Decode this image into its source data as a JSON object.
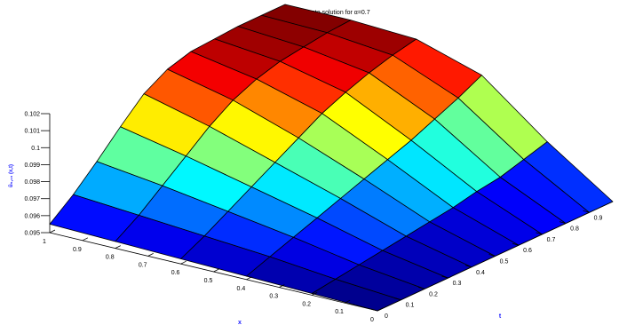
{
  "chart_data": {
    "type": "surface",
    "title": "Approximate solution for α=0.7",
    "xlabel": "x",
    "tlabel": "t",
    "zlabel": "ũ₅,₁₀ (x,t)",
    "x_ticks": [
      "0",
      "0.1",
      "0.2",
      "0.3",
      "0.4",
      "0.5",
      "0.6",
      "0.7",
      "0.8",
      "0.9",
      "1"
    ],
    "t_ticks": [
      "0",
      "0.1",
      "0.2",
      "0.3",
      "0.4",
      "0.5",
      "0.6",
      "0.7",
      "0.8",
      "0.9"
    ],
    "z_ticks": [
      "0.095",
      "0.096",
      "0.097",
      "0.098",
      "0.099",
      "0.1",
      "0.101",
      "0.102"
    ],
    "xlim": [
      0,
      1
    ],
    "tlim": [
      0,
      1
    ],
    "zlim": [
      0.095,
      0.102
    ],
    "colormap": "jet",
    "x_grid": [
      0,
      0.2,
      0.4,
      0.6,
      0.8,
      1.0
    ],
    "t_grid": [
      0,
      0.1,
      0.2,
      0.3,
      0.4,
      0.5,
      0.6,
      0.7,
      0.8,
      0.9,
      1.0
    ],
    "z_values": [
      [
        0.095,
        0.095,
        0.095,
        0.095,
        0.095,
        0.095,
        0.095,
        0.095,
        0.095,
        0.095,
        0.095
      ],
      [
        0.0951,
        0.0953,
        0.0955,
        0.0957,
        0.0959,
        0.0961,
        0.0963,
        0.0966,
        0.0968,
        0.0972,
        0.0976
      ],
      [
        0.0952,
        0.0957,
        0.0962,
        0.0967,
        0.0972,
        0.0977,
        0.0982,
        0.0987,
        0.0993,
        0.0999,
        0.1006
      ],
      [
        0.0953,
        0.096,
        0.0968,
        0.0976,
        0.0984,
        0.0992,
        0.1,
        0.1006,
        0.1011,
        0.1015,
        0.1018
      ],
      [
        0.0954,
        0.0963,
        0.0974,
        0.0985,
        0.0996,
        0.1005,
        0.1011,
        0.1015,
        0.1017,
        0.1019,
        0.102
      ],
      [
        0.0955,
        0.0966,
        0.0979,
        0.0993,
        0.1006,
        0.1014,
        0.1018,
        0.1019,
        0.102,
        0.102,
        0.102
      ]
    ]
  }
}
